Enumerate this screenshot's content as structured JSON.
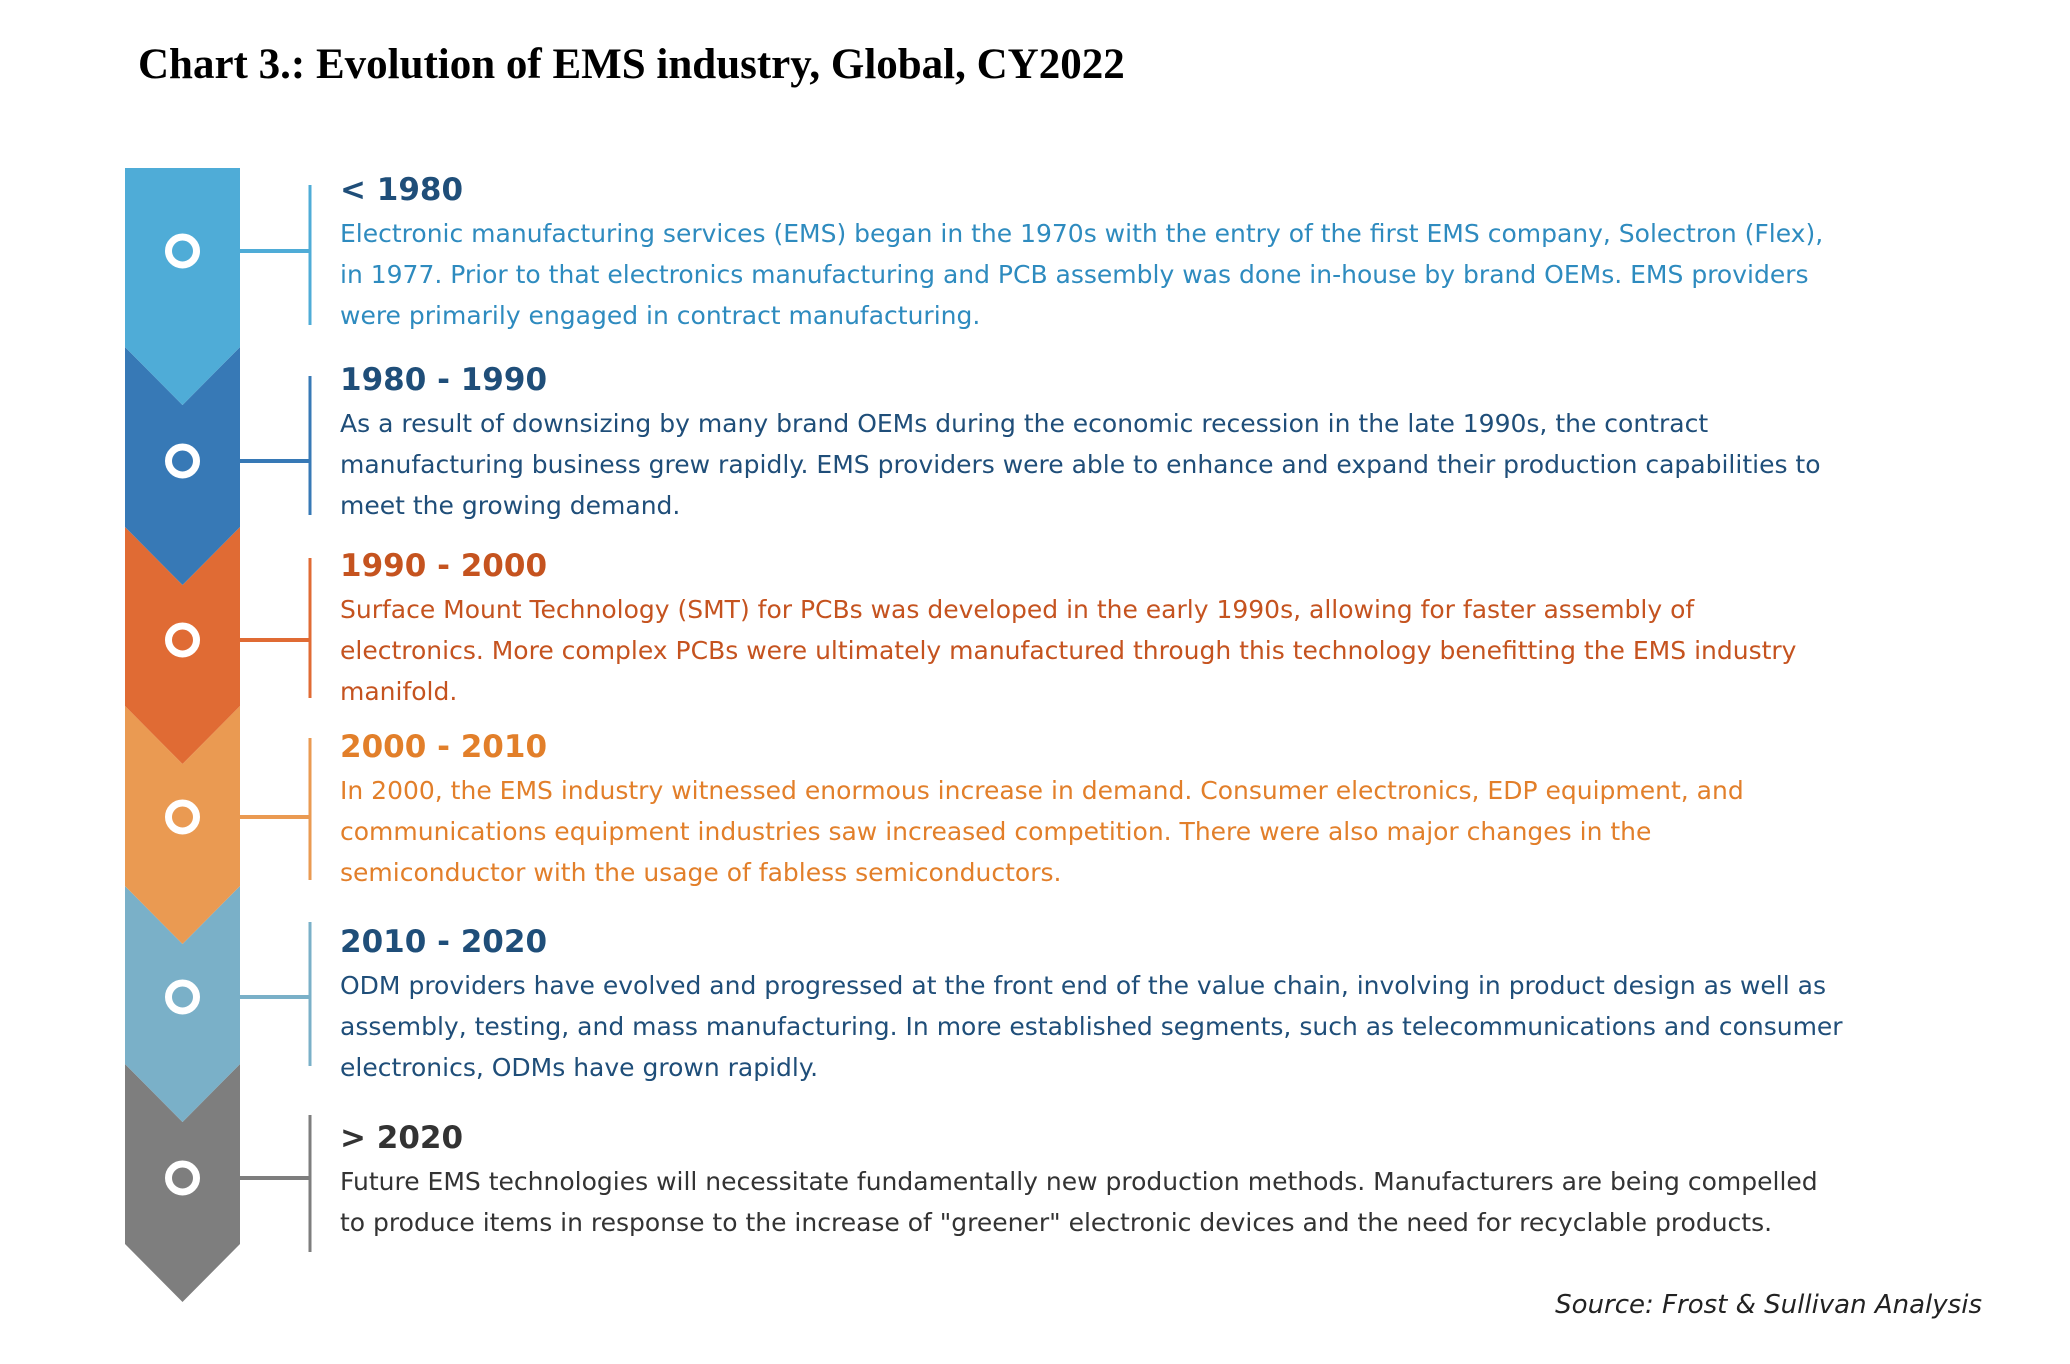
{
  "title": "Chart 3.: Evolution of EMS industry, Global, CY2022",
  "source": "Source: Frost & Sullivan Analysis",
  "colors": {
    "stage1": "#4facd7",
    "stage2": "#3779b6",
    "stage3": "#e06b34",
    "stage4": "#ea9a52",
    "stage5": "#7ab0c8",
    "stage6": "#7e7e7e",
    "text1": "#2e8bbf",
    "text2": "#1f4e79",
    "text3": "#c5531f",
    "text4": "#e27f2a",
    "text5": "#1f4e79",
    "text6": "#333333"
  },
  "timeline": [
    {
      "period": "< 1980",
      "lines": [
        "Electronic manufacturing services (EMS) began in the 1970s with the entry of the first EMS company, Solectron (Flex),",
        "in 1977. Prior to that electronics manufacturing and PCB assembly was done in-house by brand OEMs. EMS providers",
        "were primarily engaged in contract manufacturing."
      ]
    },
    {
      "period": "1980 - 1990",
      "lines": [
        "As a result of downsizing by many brand OEMs during the economic recession in the late 1990s, the contract",
        "manufacturing business grew rapidly. EMS providers were able to enhance and expand their production capabilities to",
        "meet the growing demand."
      ]
    },
    {
      "period": "1990 - 2000",
      "lines": [
        "Surface Mount Technology (SMT) for PCBs was developed in the early 1990s, allowing for faster assembly of",
        "electronics. More complex PCBs were ultimately manufactured through this technology benefitting the EMS industry",
        "manifold."
      ]
    },
    {
      "period": "2000 - 2010",
      "lines": [
        "In 2000, the EMS industry witnessed enormous increase in demand. Consumer electronics, EDP equipment, and",
        "communications equipment industries saw increased competition. There were also major changes in the",
        "semiconductor with the usage of fabless semiconductors."
      ]
    },
    {
      "period": "2010 - 2020",
      "lines": [
        "ODM providers have evolved and progressed at the front end of the value chain, involving in product design as well as",
        "assembly, testing, and mass manufacturing. In more established segments, such as telecommunications and consumer",
        "electronics, ODMs have grown rapidly."
      ]
    },
    {
      "period": "> 2020",
      "lines": [
        "Future EMS technologies will necessitate fundamentally new production methods. Manufacturers are being compelled",
        "to produce items in response to the increase of \"greener\" electronic devices and the need for recyclable products."
      ]
    }
  ]
}
